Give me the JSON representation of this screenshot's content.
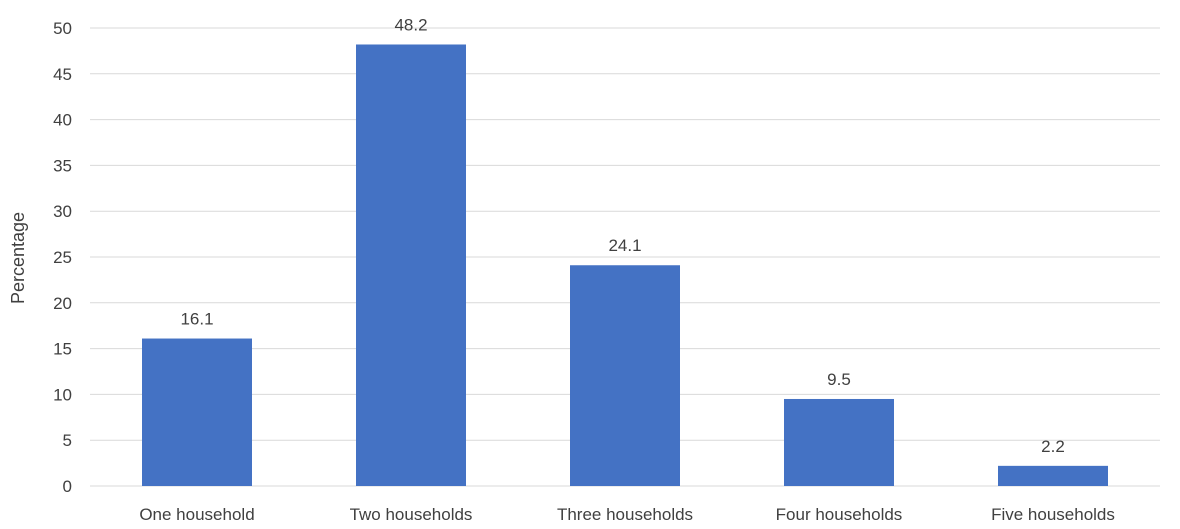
{
  "chart_data": {
    "type": "bar",
    "title": "",
    "xlabel": "",
    "ylabel": "Percentage",
    "categories": [
      "One household",
      "Two households",
      "Three households",
      "Four households",
      "Five households"
    ],
    "values": [
      16.1,
      48.2,
      24.1,
      9.5,
      2.2
    ],
    "data_labels": [
      "16.1",
      "48.2",
      "24.1",
      "9.5",
      "2.2"
    ],
    "ylim": [
      0,
      50
    ],
    "y_ticks": [
      0,
      5,
      10,
      15,
      20,
      25,
      30,
      35,
      40,
      45,
      50
    ],
    "grid": true,
    "legend": "none",
    "bar_color": "#4472C4"
  }
}
